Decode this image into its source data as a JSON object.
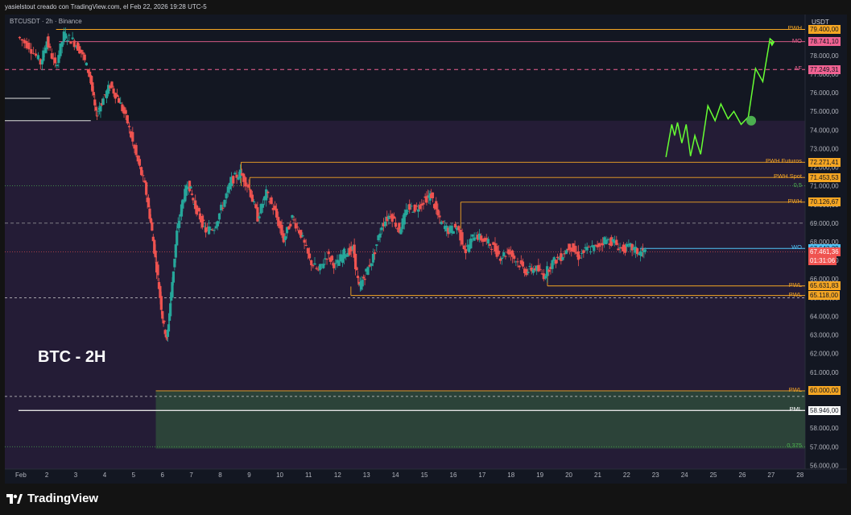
{
  "header": {
    "attribution": "yasielstout creado con TradingView.com, el Feb 22, 2026 19:28 UTC-5"
  },
  "symbol_line": "BTCUSDT · 2h · Binance",
  "big_label": "BTC - 2H",
  "currency": "USDT",
  "footer": {
    "brand": "TradingView"
  },
  "colors": {
    "up": "#26a69a",
    "down": "#ef5350",
    "level": "#f5a623",
    "pink": "#f06292",
    "projection": "#66ff33"
  },
  "chart_data": {
    "type": "candlestick",
    "xlabels": [
      "Feb",
      "2",
      "3",
      "4",
      "5",
      "6",
      "7",
      "8",
      "9",
      "10",
      "11",
      "12",
      "13",
      "14",
      "15",
      "16",
      "17",
      "18",
      "19",
      "20",
      "21",
      "22",
      "23",
      "24",
      "25",
      "26",
      "27",
      "28"
    ],
    "yticks": [
      56000,
      57000,
      58000,
      59000,
      60000,
      61000,
      62000,
      63000,
      64000,
      65000,
      66000,
      67000,
      68000,
      69000,
      70000,
      71000,
      72000,
      73000,
      74000,
      75000,
      76000,
      77000,
      78000
    ],
    "ytick_labels": [
      "56.000,00",
      "57.000,00",
      "58.000,00",
      "59.000,00",
      "60.000,00",
      "61.000,00",
      "62.000,00",
      "63.000,00",
      "64.000,00",
      "65.000,00",
      "66.000,00",
      "67.000,00",
      "68.000,00",
      "69.000,00",
      "70.000,00",
      "71.000,00",
      "72.000,00",
      "73.000,00",
      "74.000,00",
      "75.000,00",
      "76.000,00",
      "77.000,00",
      "78.000,00"
    ],
    "ylim": [
      55800,
      80200
    ],
    "levels": [
      {
        "name": "PWH",
        "value": 79400,
        "tag": "79.400,00"
      },
      {
        "name": "MO",
        "value": 78741.1,
        "tag": "78.741,10"
      },
      {
        "name": "AF",
        "value": 77249.31,
        "tag": "77.249,31"
      },
      {
        "name": "PWH Futuros",
        "value": 72271.41,
        "tag": "72.271,41"
      },
      {
        "name": "PWH Spot",
        "value": 71453.53,
        "tag": "71.453,53"
      },
      {
        "name": "0,5",
        "value": 71000
      },
      {
        "name": "PWH",
        "value": 70126.67,
        "tag": "70.126,67"
      },
      {
        "name": "WO",
        "value": 67643.39,
        "tag": "67.643,39"
      },
      {
        "name": "PWL",
        "value": 65631.83,
        "tag": "65.631,83"
      },
      {
        "name": "PWL",
        "value": 65118.0,
        "tag": "65.118,00"
      },
      {
        "name": "PWL",
        "value": 60000.0,
        "tag": "60.000,00"
      },
      {
        "name": "PML",
        "value": 58946.0,
        "tag": "58.946,00"
      },
      {
        "name": "0,375",
        "value": 57000
      }
    ],
    "current_price": {
      "value": 67461.36,
      "tag": "67.461,36",
      "countdown": "01:31:06"
    },
    "price_path": [
      [
        1.0,
        79000
      ],
      [
        1.4,
        78500
      ],
      [
        1.8,
        77600
      ],
      [
        2.0,
        78800
      ],
      [
        2.3,
        77400
      ],
      [
        2.6,
        79100
      ],
      [
        2.9,
        78800
      ],
      [
        3.2,
        78200
      ],
      [
        3.5,
        76900
      ],
      [
        3.7,
        74800
      ],
      [
        3.9,
        75500
      ],
      [
        4.2,
        76400
      ],
      [
        4.5,
        75600
      ],
      [
        4.8,
        74400
      ],
      [
        5.1,
        72600
      ],
      [
        5.4,
        71000
      ],
      [
        5.6,
        69000
      ],
      [
        5.8,
        66600
      ],
      [
        6.0,
        64000
      ],
      [
        6.15,
        62700
      ],
      [
        6.3,
        65200
      ],
      [
        6.5,
        68500
      ],
      [
        6.7,
        70200
      ],
      [
        6.9,
        71200
      ],
      [
        7.1,
        70000
      ],
      [
        7.3,
        69300
      ],
      [
        7.5,
        68600
      ],
      [
        7.8,
        68800
      ],
      [
        8.1,
        70000
      ],
      [
        8.4,
        71300
      ],
      [
        8.7,
        71700
      ],
      [
        9.0,
        70900
      ],
      [
        9.3,
        69300
      ],
      [
        9.6,
        70600
      ],
      [
        9.9,
        69600
      ],
      [
        10.2,
        68100
      ],
      [
        10.5,
        69300
      ],
      [
        10.8,
        68400
      ],
      [
        11.1,
        67000
      ],
      [
        11.4,
        66400
      ],
      [
        11.7,
        67300
      ],
      [
        12.0,
        66700
      ],
      [
        12.3,
        67400
      ],
      [
        12.6,
        67600
      ],
      [
        12.8,
        65500
      ],
      [
        13.0,
        66200
      ],
      [
        13.3,
        67200
      ],
      [
        13.6,
        68900
      ],
      [
        13.9,
        69500
      ],
      [
        14.2,
        68600
      ],
      [
        14.5,
        69800
      ],
      [
        14.8,
        69800
      ],
      [
        15.1,
        70300
      ],
      [
        15.3,
        70500
      ],
      [
        15.6,
        69100
      ],
      [
        15.9,
        68600
      ],
      [
        16.2,
        68800
      ],
      [
        16.5,
        67500
      ],
      [
        16.8,
        68400
      ],
      [
        17.1,
        68100
      ],
      [
        17.4,
        67800
      ],
      [
        17.7,
        67200
      ],
      [
        18.0,
        67500
      ],
      [
        18.3,
        66900
      ],
      [
        18.6,
        66400
      ],
      [
        18.9,
        66600
      ],
      [
        19.2,
        66200
      ],
      [
        19.5,
        66900
      ],
      [
        19.8,
        67200
      ],
      [
        20.1,
        67800
      ],
      [
        20.4,
        67200
      ],
      [
        20.7,
        67600
      ],
      [
        21.0,
        67700
      ],
      [
        21.3,
        68100
      ],
      [
        21.6,
        68000
      ],
      [
        21.9,
        67600
      ],
      [
        22.2,
        67700
      ],
      [
        22.5,
        67400
      ],
      [
        22.7,
        67460
      ]
    ],
    "projection": [
      [
        23.4,
        72550
      ],
      [
        23.6,
        74300
      ],
      [
        23.7,
        73700
      ],
      [
        23.8,
        74400
      ],
      [
        23.95,
        73300
      ],
      [
        24.1,
        74300
      ],
      [
        24.25,
        72600
      ],
      [
        24.4,
        73700
      ],
      [
        24.6,
        72700
      ],
      [
        24.85,
        75300
      ],
      [
        25.1,
        74500
      ],
      [
        25.3,
        75400
      ],
      [
        25.55,
        74600
      ],
      [
        25.75,
        75000
      ],
      [
        26.0,
        74300
      ],
      [
        26.25,
        74700
      ],
      [
        26.5,
        77300
      ],
      [
        26.75,
        76600
      ],
      [
        27.0,
        78900
      ],
      [
        27.15,
        78700
      ]
    ],
    "projection_marker": [
      26.35,
      74500
    ],
    "demand_zone": {
      "x0": 5.75,
      "y0": 56900,
      "y1": 60000
    }
  }
}
